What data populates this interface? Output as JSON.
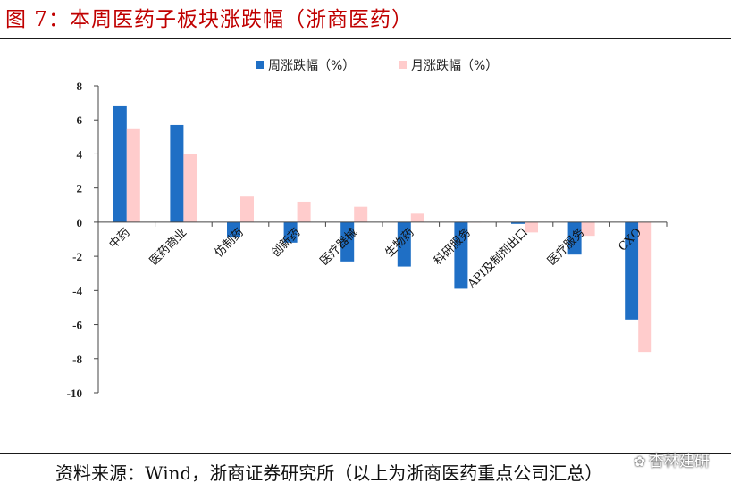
{
  "figure": {
    "title": "图 7：本周医药子板块涨跌幅（浙商医药）",
    "source": "资料来源：Wind，浙商证券研究所（以上为浙商医药重点公司汇总）",
    "watermark": "杏林建研",
    "watermark_icon": "wechat-icon"
  },
  "chart_data": {
    "type": "bar",
    "title": "",
    "xlabel": "",
    "ylabel": "",
    "categories": [
      "中药",
      "医药商业",
      "仿制药",
      "创新药",
      "医疗器械",
      "生物药",
      "科研服务",
      "API及制剂出口",
      "医疗服务",
      "CXO"
    ],
    "series": [
      {
        "name": "周涨跌幅（%）",
        "color": "#1f6fc5",
        "values": [
          6.8,
          5.7,
          -0.9,
          -1.2,
          -2.3,
          -2.6,
          -3.9,
          -0.1,
          -1.9,
          -5.7
        ]
      },
      {
        "name": "月涨跌幅（%）",
        "color": "#ffcccc",
        "values": [
          5.5,
          4.0,
          1.5,
          1.2,
          0.9,
          0.5,
          0.0,
          -0.6,
          -0.8,
          -7.6
        ]
      }
    ],
    "ylim": [
      -10,
      8
    ],
    "yticks": [
      "8",
      "6",
      "4",
      "2",
      "0",
      "-2",
      "-4",
      "-6",
      "-8",
      "-10"
    ],
    "grid": false,
    "legend_position": "top-center"
  }
}
